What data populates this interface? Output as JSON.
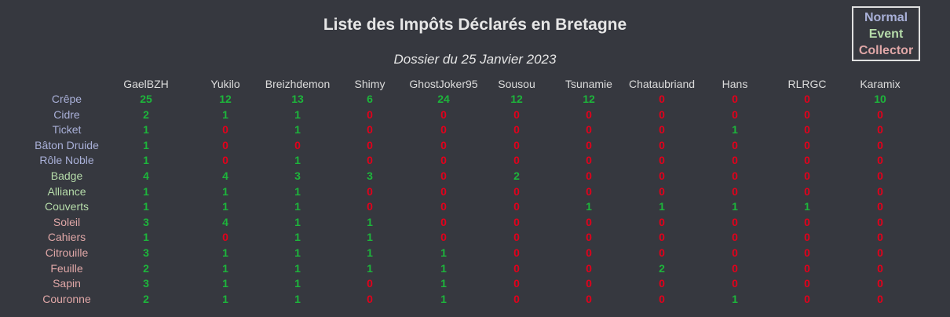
{
  "chart_data": {
    "type": "table",
    "title": "Liste des Impôts Déclarés en Bretagne",
    "subtitle": "Dossier du 25 Janvier 2023",
    "legend": {
      "position": "top-right",
      "entries": [
        {
          "label": "Normal",
          "color": "#a9b0d8"
        },
        {
          "label": "Event",
          "color": "#b6dcaa"
        },
        {
          "label": "Collector",
          "color": "#e0a7a7"
        }
      ]
    },
    "colors": {
      "positive": "#1db53b",
      "zero": "#e3001b",
      "header": "#dcdcdc"
    },
    "columns": [
      "GaelBZH",
      "Yukilo",
      "Breizhdemon",
      "Shimy",
      "GhostJoker95",
      "Sousou",
      "Tsunamie",
      "Chataubriand",
      "Hans",
      "RLRGC",
      "Karamix"
    ],
    "rows": [
      {
        "label": "Crêpe",
        "type": "Normal",
        "values": [
          25,
          12,
          13,
          6,
          24,
          12,
          12,
          0,
          0,
          0,
          10
        ]
      },
      {
        "label": "Cidre",
        "type": "Normal",
        "values": [
          2,
          1,
          1,
          0,
          0,
          0,
          0,
          0,
          0,
          0,
          0
        ]
      },
      {
        "label": "Ticket",
        "type": "Normal",
        "values": [
          1,
          0,
          1,
          0,
          0,
          0,
          0,
          0,
          1,
          0,
          0
        ]
      },
      {
        "label": "Bâton Druide",
        "type": "Normal",
        "values": [
          1,
          0,
          0,
          0,
          0,
          0,
          0,
          0,
          0,
          0,
          0
        ]
      },
      {
        "label": "Rôle Noble",
        "type": "Normal",
        "values": [
          1,
          0,
          1,
          0,
          0,
          0,
          0,
          0,
          0,
          0,
          0
        ]
      },
      {
        "label": "Badge",
        "type": "Event",
        "values": [
          4,
          4,
          3,
          3,
          0,
          2,
          0,
          0,
          0,
          0,
          0
        ]
      },
      {
        "label": "Alliance",
        "type": "Event",
        "values": [
          1,
          1,
          1,
          0,
          0,
          0,
          0,
          0,
          0,
          0,
          0
        ]
      },
      {
        "label": "Couverts",
        "type": "Event",
        "values": [
          1,
          1,
          1,
          0,
          0,
          0,
          1,
          1,
          1,
          1,
          0
        ]
      },
      {
        "label": "Soleil",
        "type": "Collector",
        "values": [
          3,
          4,
          1,
          1,
          0,
          0,
          0,
          0,
          0,
          0,
          0
        ]
      },
      {
        "label": "Cahiers",
        "type": "Collector",
        "values": [
          1,
          0,
          1,
          1,
          0,
          0,
          0,
          0,
          0,
          0,
          0
        ]
      },
      {
        "label": "Citrouille",
        "type": "Collector",
        "values": [
          3,
          1,
          1,
          1,
          1,
          0,
          0,
          0,
          0,
          0,
          0
        ]
      },
      {
        "label": "Feuille",
        "type": "Collector",
        "values": [
          2,
          1,
          1,
          1,
          1,
          0,
          0,
          2,
          0,
          0,
          0
        ]
      },
      {
        "label": "Sapin",
        "type": "Collector",
        "values": [
          3,
          1,
          1,
          0,
          1,
          0,
          0,
          0,
          0,
          0,
          0
        ]
      },
      {
        "label": "Couronne",
        "type": "Collector",
        "values": [
          2,
          1,
          1,
          0,
          1,
          0,
          0,
          0,
          1,
          0,
          0
        ]
      }
    ]
  }
}
